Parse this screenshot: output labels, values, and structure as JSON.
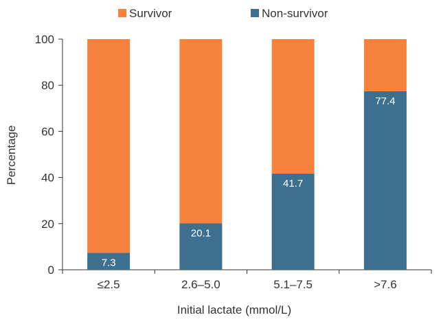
{
  "chart_data": {
    "type": "bar",
    "stacked": true,
    "title": "",
    "categories": [
      "≤2.5",
      "2.6–5.0",
      "5.1–7.5",
      ">7.6"
    ],
    "series": [
      {
        "name": "Non-survivor",
        "color": "#3d6f8e",
        "values": [
          7.3,
          20.1,
          41.7,
          77.4
        ]
      },
      {
        "name": "Survivor",
        "color": "#f5833d",
        "values": [
          92.7,
          79.9,
          58.3,
          22.6
        ]
      }
    ],
    "data_labels": [
      "7.3",
      "20.1",
      "41.7",
      "77.4"
    ],
    "xlabel": "Initial lactate (mmol/L)",
    "ylabel": "Percentage",
    "ylim": [
      0,
      100
    ],
    "yticks": [
      0,
      20,
      40,
      60,
      80,
      100
    ],
    "legend": {
      "position": "top-center",
      "entries": [
        {
          "label": "Survivor",
          "color": "#f5833d"
        },
        {
          "label": "Non-survivor",
          "color": "#3d6f8e"
        }
      ]
    },
    "grid": false
  }
}
